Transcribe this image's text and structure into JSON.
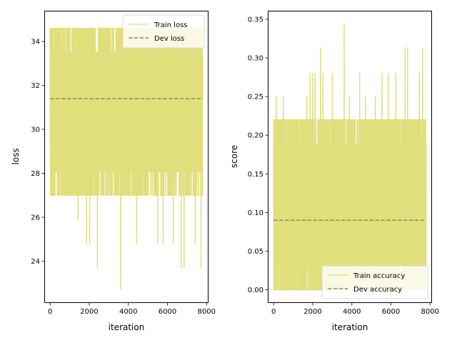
{
  "chart_data": [
    {
      "type": "line",
      "title": "",
      "xlabel": "iteration",
      "ylabel": "loss",
      "xlim": [
        -300,
        8100
      ],
      "ylim": [
        22.1,
        35.4
      ],
      "xticks": [
        0,
        2000,
        4000,
        6000,
        8000
      ],
      "yticks": [
        24,
        26,
        28,
        30,
        32,
        34
      ],
      "x_range": [
        0,
        7800
      ],
      "legend": {
        "position": "top-right",
        "entries": [
          "Train loss",
          "Dev loss"
        ]
      },
      "series": [
        {
          "name": "Train loss",
          "style": "solid",
          "color": "#e0df7c",
          "summary": {
            "max": 34.6,
            "min": 22.7,
            "band_low": 27.0,
            "band_high": 34.6
          },
          "dips": [
            [
              1430,
              25.9
            ],
            [
              1860,
              24.8
            ],
            [
              2020,
              24.8
            ],
            [
              2420,
              23.7
            ],
            [
              3610,
              22.7
            ],
            [
              4430,
              24.8
            ],
            [
              5500,
              24.8
            ],
            [
              5780,
              24.8
            ],
            [
              6300,
              24.8
            ],
            [
              6700,
              23.7
            ],
            [
              6850,
              23.7
            ],
            [
              7420,
              24.8
            ],
            [
              7720,
              23.7
            ]
          ]
        },
        {
          "name": "Dev loss",
          "style": "dashed",
          "color": "#8f8a5e",
          "points": [
            [
              0,
              31.4
            ],
            [
              7800,
              31.4
            ]
          ]
        }
      ]
    },
    {
      "type": "line",
      "title": "",
      "xlabel": "iteration",
      "ylabel": "score",
      "xlim": [
        -300,
        8100
      ],
      "ylim": [
        -0.017,
        0.361
      ],
      "xticks": [
        0,
        2000,
        4000,
        6000,
        8000
      ],
      "yticks": [
        0.0,
        0.05,
        0.1,
        0.15,
        0.2,
        0.25,
        0.3,
        0.35
      ],
      "x_range": [
        0,
        7800
      ],
      "legend": {
        "position": "bottom-right",
        "entries": [
          "Train accuracy",
          "Dev accuracy"
        ]
      },
      "series": [
        {
          "name": "Train accuracy",
          "style": "solid",
          "color": "#e0df7c",
          "summary": {
            "max": 0.344,
            "min": 0.0,
            "band_low": 0.0,
            "band_high": 0.22
          },
          "peaks": [
            [
              130,
              0.25
            ],
            [
              500,
              0.25
            ],
            [
              1700,
              0.25
            ],
            [
              1860,
              0.28
            ],
            [
              2000,
              0.28
            ],
            [
              2120,
              0.28
            ],
            [
              2400,
              0.313
            ],
            [
              2520,
              0.28
            ],
            [
              3000,
              0.28
            ],
            [
              3610,
              0.344
            ],
            [
              3880,
              0.25
            ],
            [
              4400,
              0.28
            ],
            [
              4700,
              0.25
            ],
            [
              5200,
              0.25
            ],
            [
              5540,
              0.28
            ],
            [
              5860,
              0.28
            ],
            [
              6250,
              0.28
            ],
            [
              6720,
              0.313
            ],
            [
              6850,
              0.313
            ],
            [
              7450,
              0.28
            ],
            [
              7620,
              0.313
            ]
          ]
        },
        {
          "name": "Dev accuracy",
          "style": "dashed",
          "color": "#8f8a5e",
          "points": [
            [
              0,
              0.09
            ],
            [
              7800,
              0.09
            ]
          ]
        }
      ]
    }
  ]
}
